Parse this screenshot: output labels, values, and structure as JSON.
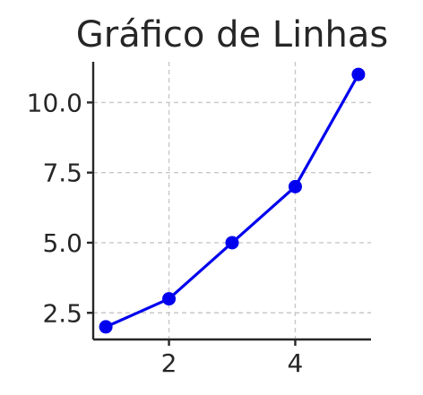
{
  "chart_data": {
    "type": "line",
    "title": "Gráfico de Linhas",
    "xlabel": "",
    "ylabel": "",
    "x": [
      1,
      2,
      3,
      4,
      5
    ],
    "series": [
      {
        "values": [
          2,
          3,
          5,
          7,
          11
        ],
        "color": "#0000ee"
      }
    ],
    "xlim": [
      0.8,
      5.2
    ],
    "ylim": [
      1.55,
      11.45
    ],
    "xticks": [
      2,
      4
    ],
    "xtick_labels": [
      "2",
      "4"
    ],
    "yticks": [
      2.5,
      5.0,
      7.5,
      10.0
    ],
    "ytick_labels": [
      "2.5",
      "5.0",
      "7.5",
      "10.0"
    ],
    "grid": true,
    "marker": "circle"
  }
}
